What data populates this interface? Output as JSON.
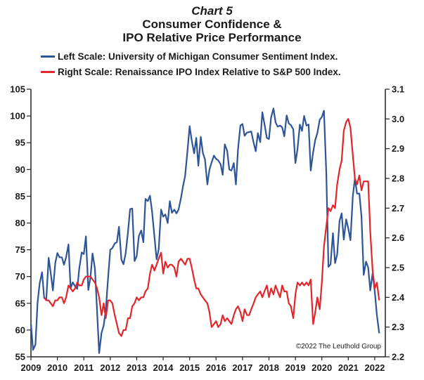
{
  "chart_data": {
    "type": "line",
    "title_line1": "Chart 5",
    "title_line2": "Consumer Confidence &",
    "title_line3": "IPO Relative Price Performance",
    "legend": [
      {
        "label": "Left Scale: University of Michigan Consumer Sentiment Index.",
        "color": "#2e5597"
      },
      {
        "label": "Right Scale: Renaissance IPO Index Relative to S&P 500 Index.",
        "color": "#e3262b"
      }
    ],
    "copyright": "©2022 The Leuthold Group",
    "x_ticks": [
      "2009",
      "2010",
      "2011",
      "2012",
      "2013",
      "2014",
      "2015",
      "2016",
      "2017",
      "2018",
      "2019",
      "2020",
      "2021",
      "2022"
    ],
    "x_range": [
      2009,
      2022.4
    ],
    "left_axis": {
      "range": [
        55,
        105
      ],
      "ticks": [
        "55",
        "60",
        "65",
        "70",
        "75",
        "80",
        "85",
        "90",
        "95",
        "100",
        "105"
      ]
    },
    "right_axis": {
      "range": [
        2.2,
        3.1
      ],
      "ticks": [
        "2.2",
        "2.3",
        "2.4",
        "2.5",
        "2.6",
        "2.7",
        "2.8",
        "2.9",
        "3.0",
        "3.1"
      ]
    },
    "grid": false,
    "series": [
      {
        "name": "University of Michigan Consumer Sentiment Index",
        "axis": "left",
        "color": "#2e5597",
        "x": [
          2009.0,
          2009.08,
          2009.17,
          2009.25,
          2009.33,
          2009.42,
          2009.5,
          2009.58,
          2009.67,
          2009.75,
          2009.83,
          2009.92,
          2010.0,
          2010.08,
          2010.17,
          2010.25,
          2010.33,
          2010.42,
          2010.5,
          2010.58,
          2010.67,
          2010.75,
          2010.83,
          2010.92,
          2011.0,
          2011.08,
          2011.17,
          2011.25,
          2011.33,
          2011.42,
          2011.5,
          2011.58,
          2011.67,
          2011.75,
          2011.83,
          2011.92,
          2012.0,
          2012.08,
          2012.17,
          2012.25,
          2012.33,
          2012.42,
          2012.5,
          2012.58,
          2012.67,
          2012.75,
          2012.83,
          2012.92,
          2013.0,
          2013.08,
          2013.17,
          2013.25,
          2013.33,
          2013.42,
          2013.5,
          2013.58,
          2013.67,
          2013.75,
          2013.83,
          2013.92,
          2014.0,
          2014.08,
          2014.17,
          2014.25,
          2014.33,
          2014.42,
          2014.5,
          2014.58,
          2014.67,
          2014.75,
          2014.83,
          2014.92,
          2015.0,
          2015.08,
          2015.17,
          2015.25,
          2015.33,
          2015.42,
          2015.5,
          2015.58,
          2015.67,
          2015.75,
          2015.83,
          2015.92,
          2016.0,
          2016.08,
          2016.17,
          2016.25,
          2016.33,
          2016.42,
          2016.5,
          2016.58,
          2016.67,
          2016.75,
          2016.83,
          2016.92,
          2017.0,
          2017.08,
          2017.17,
          2017.25,
          2017.33,
          2017.42,
          2017.5,
          2017.58,
          2017.67,
          2017.75,
          2017.83,
          2017.92,
          2018.0,
          2018.08,
          2018.17,
          2018.25,
          2018.33,
          2018.42,
          2018.5,
          2018.58,
          2018.67,
          2018.75,
          2018.83,
          2018.92,
          2019.0,
          2019.08,
          2019.17,
          2019.25,
          2019.33,
          2019.42,
          2019.5,
          2019.58,
          2019.67,
          2019.75,
          2019.83,
          2019.92,
          2020.0,
          2020.08,
          2020.17,
          2020.25,
          2020.33,
          2020.42,
          2020.5,
          2020.58,
          2020.67,
          2020.75,
          2020.83,
          2020.92,
          2021.0,
          2021.08,
          2021.17,
          2021.25,
          2021.33,
          2021.42,
          2021.5,
          2021.58,
          2021.67,
          2021.75,
          2021.83,
          2021.92,
          2022.0,
          2022.08,
          2022.17
        ],
        "y": [
          61.2,
          56.3,
          57.3,
          65.1,
          68.7,
          70.8,
          66.0,
          65.7,
          73.5,
          70.6,
          67.4,
          72.5,
          74.4,
          73.6,
          73.6,
          72.2,
          73.6,
          76.0,
          67.8,
          68.9,
          68.2,
          67.7,
          71.6,
          74.5,
          74.2,
          77.5,
          67.5,
          69.8,
          74.3,
          71.5,
          63.7,
          55.7,
          59.5,
          60.8,
          63.7,
          69.9,
          75.0,
          75.3,
          76.2,
          76.4,
          79.3,
          73.2,
          72.3,
          74.3,
          78.3,
          82.6,
          82.7,
          72.9,
          73.8,
          77.6,
          78.6,
          76.4,
          84.5,
          84.1,
          85.1,
          82.1,
          77.5,
          73.2,
          75.1,
          82.5,
          81.2,
          81.6,
          80.0,
          84.1,
          81.9,
          82.5,
          81.8,
          82.5,
          84.6,
          86.9,
          88.8,
          93.6,
          98.1,
          95.4,
          93.0,
          95.9,
          90.7,
          96.1,
          93.1,
          91.9,
          87.2,
          90.0,
          91.3,
          92.6,
          92.0,
          91.7,
          91.0,
          89.0,
          94.7,
          93.5,
          90.0,
          89.8,
          91.2,
          87.2,
          93.8,
          98.2,
          98.5,
          96.3,
          96.9,
          97.0,
          97.1,
          95.0,
          93.4,
          96.8,
          95.1,
          100.7,
          98.5,
          95.9,
          95.7,
          99.7,
          101.4,
          98.8,
          98.0,
          98.2,
          97.9,
          96.2,
          100.1,
          98.6,
          98.3,
          97.5,
          91.2,
          93.8,
          98.4,
          97.2,
          100.0,
          98.2,
          98.4,
          89.8,
          93.2,
          95.5,
          96.8,
          99.3,
          99.8,
          101.0,
          89.1,
          71.8,
          72.3,
          78.1,
          72.5,
          74.1,
          80.4,
          81.8,
          76.9,
          80.7,
          79.0,
          76.8,
          84.9,
          88.3,
          85.5,
          85.5,
          81.2,
          70.3,
          72.8,
          71.7,
          67.4,
          70.6,
          67.2,
          62.8,
          59.4
        ]
      },
      {
        "name": "Renaissance IPO Index Relative to S&P 500 Index",
        "axis": "right",
        "color": "#e3262b",
        "x": [
          2009.5,
          2009.58,
          2009.67,
          2009.75,
          2009.83,
          2009.92,
          2010.0,
          2010.08,
          2010.17,
          2010.25,
          2010.33,
          2010.42,
          2010.5,
          2010.58,
          2010.67,
          2010.75,
          2010.83,
          2010.92,
          2011.0,
          2011.08,
          2011.17,
          2011.25,
          2011.33,
          2011.42,
          2011.5,
          2011.58,
          2011.67,
          2011.75,
          2011.83,
          2011.92,
          2012.0,
          2012.08,
          2012.17,
          2012.25,
          2012.33,
          2012.42,
          2012.5,
          2012.58,
          2012.67,
          2012.75,
          2012.83,
          2012.92,
          2013.0,
          2013.08,
          2013.17,
          2013.25,
          2013.33,
          2013.42,
          2013.5,
          2013.58,
          2013.67,
          2013.75,
          2013.83,
          2013.92,
          2014.0,
          2014.08,
          2014.17,
          2014.25,
          2014.33,
          2014.42,
          2014.5,
          2014.58,
          2014.67,
          2014.75,
          2014.83,
          2014.92,
          2015.0,
          2015.08,
          2015.17,
          2015.25,
          2015.33,
          2015.42,
          2015.5,
          2015.58,
          2015.67,
          2015.75,
          2015.83,
          2015.92,
          2016.0,
          2016.08,
          2016.17,
          2016.25,
          2016.33,
          2016.42,
          2016.5,
          2016.58,
          2016.67,
          2016.75,
          2016.83,
          2016.92,
          2017.0,
          2017.08,
          2017.17,
          2017.25,
          2017.33,
          2017.42,
          2017.5,
          2017.58,
          2017.67,
          2017.75,
          2017.83,
          2017.92,
          2018.0,
          2018.08,
          2018.17,
          2018.25,
          2018.33,
          2018.42,
          2018.5,
          2018.58,
          2018.67,
          2018.75,
          2018.83,
          2018.92,
          2019.0,
          2019.08,
          2019.17,
          2019.25,
          2019.33,
          2019.42,
          2019.5,
          2019.58,
          2019.67,
          2019.75,
          2019.83,
          2019.92,
          2020.0,
          2020.08,
          2020.17,
          2020.25,
          2020.33,
          2020.42,
          2020.5,
          2020.58,
          2020.67,
          2020.75,
          2020.83,
          2020.92,
          2021.0,
          2021.08,
          2021.17,
          2021.25,
          2021.33,
          2021.42,
          2021.5,
          2021.58,
          2021.67,
          2021.75,
          2021.83,
          2021.92,
          2022.0,
          2022.08,
          2022.17
        ],
        "y": [
          2.4,
          2.39,
          2.39,
          2.38,
          2.37,
          2.39,
          2.39,
          2.4,
          2.4,
          2.38,
          2.4,
          2.44,
          2.43,
          2.42,
          2.43,
          2.45,
          2.44,
          2.44,
          2.46,
          2.47,
          2.47,
          2.47,
          2.46,
          2.45,
          2.43,
          2.4,
          2.34,
          2.38,
          2.33,
          2.39,
          2.39,
          2.38,
          2.34,
          2.31,
          2.28,
          2.27,
          2.29,
          2.29,
          2.33,
          2.33,
          2.37,
          2.38,
          2.4,
          2.39,
          2.4,
          2.4,
          2.42,
          2.43,
          2.48,
          2.51,
          2.49,
          2.51,
          2.53,
          2.55,
          2.48,
          2.52,
          2.5,
          2.51,
          2.51,
          2.5,
          2.47,
          2.52,
          2.53,
          2.52,
          2.51,
          2.53,
          2.53,
          2.5,
          2.46,
          2.43,
          2.43,
          2.41,
          2.4,
          2.39,
          2.38,
          2.35,
          2.3,
          2.31,
          2.32,
          2.3,
          2.31,
          2.34,
          2.32,
          2.33,
          2.32,
          2.31,
          2.34,
          2.36,
          2.37,
          2.35,
          2.32,
          2.36,
          2.34,
          2.34,
          2.36,
          2.38,
          2.4,
          2.41,
          2.42,
          2.4,
          2.42,
          2.44,
          2.4,
          2.43,
          2.41,
          2.44,
          2.42,
          2.4,
          2.44,
          2.42,
          2.42,
          2.38,
          2.37,
          2.33,
          2.41,
          2.45,
          2.44,
          2.45,
          2.44,
          2.45,
          2.44,
          2.46,
          2.31,
          2.35,
          2.4,
          2.36,
          2.45,
          2.57,
          2.64,
          2.7,
          2.69,
          2.71,
          2.7,
          2.78,
          2.83,
          2.86,
          2.96,
          2.99,
          3.0,
          2.97,
          2.88,
          2.8,
          2.78,
          2.81,
          2.76,
          2.79,
          2.79,
          2.79,
          2.62,
          2.49,
          2.43,
          2.45,
          2.39
        ]
      }
    ]
  }
}
